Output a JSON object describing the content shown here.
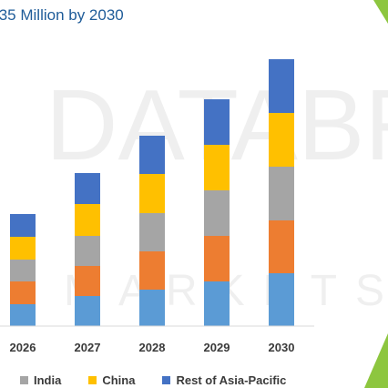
{
  "title_fragment": ".35 Million by 2030",
  "watermark": {
    "line1": "DATABR",
    "line2": "MARKETS"
  },
  "colors": {
    "base": "#5b9bd5",
    "orange": "#ed7d31",
    "gray": "#a5a5a5",
    "china": "#ffc000",
    "rest": "#4472c4",
    "axis": "#d9d9d9",
    "accent_green": "#8dc63f"
  },
  "legend": [
    {
      "label": "India",
      "color": "#a5a5a5"
    },
    {
      "label": "China",
      "color": "#ffc000"
    },
    {
      "label": "Rest of Asia-Pacific",
      "color": "#4472c4"
    }
  ],
  "chart_data": {
    "type": "bar",
    "stacked": true,
    "categories": [
      "2026",
      "2027",
      "2028",
      "2029",
      "2030"
    ],
    "ylim": [
      0,
      300
    ],
    "series": [
      {
        "color": "#5b9bd5",
        "values": [
          24,
          33,
          40,
          49,
          58
        ]
      },
      {
        "color": "#ed7d31",
        "values": [
          25,
          33,
          42,
          50,
          58
        ]
      },
      {
        "name": "India",
        "color": "#a5a5a5",
        "values": [
          24,
          33,
          42,
          50,
          59
        ]
      },
      {
        "name": "China",
        "color": "#ffc000",
        "values": [
          25,
          35,
          43,
          50,
          59
        ]
      },
      {
        "name": "Rest of Asia-Pacific",
        "color": "#4472c4",
        "values": [
          25,
          34,
          42,
          50,
          59
        ]
      }
    ]
  }
}
